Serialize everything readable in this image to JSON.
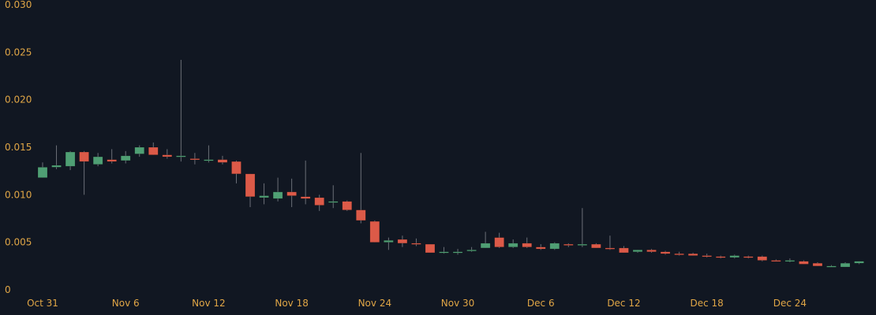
{
  "colors": {
    "background": "#111722",
    "up": "#4f9f74",
    "down": "#dc5a48",
    "wick": "#6b6f78",
    "tick_label": "#e0a646"
  },
  "chart_data": {
    "type": "candlestick",
    "title": "",
    "xlabel": "",
    "ylabel": "",
    "ylim": [
      0,
      0.03
    ],
    "y_ticks": [
      0,
      0.005,
      0.01,
      0.015,
      0.02,
      0.025,
      0.03
    ],
    "y_tick_labels": [
      "0",
      "0.005",
      "0.010",
      "0.015",
      "0.020",
      "0.025",
      "0.030"
    ],
    "x_tick_labels": [
      "Oct 31",
      "Nov 6",
      "Nov 12",
      "Nov 18",
      "Nov 24",
      "Nov 30",
      "Dec 6",
      "Dec 12",
      "Dec 18",
      "Dec 24"
    ],
    "x_tick_index": [
      0,
      6,
      12,
      18,
      24,
      30,
      36,
      42,
      48,
      54
    ],
    "grid": false,
    "candles": [
      {
        "date": "Oct 31",
        "open": 0.0118,
        "high": 0.0134,
        "low": 0.0118,
        "close": 0.0129
      },
      {
        "date": "Nov 1",
        "open": 0.0129,
        "high": 0.0152,
        "low": 0.0127,
        "close": 0.0131
      },
      {
        "date": "Nov 2",
        "open": 0.013,
        "high": 0.0146,
        "low": 0.0126,
        "close": 0.0145
      },
      {
        "date": "Nov 3",
        "open": 0.0145,
        "high": 0.0146,
        "low": 0.01,
        "close": 0.0135
      },
      {
        "date": "Nov 4",
        "open": 0.0132,
        "high": 0.0144,
        "low": 0.013,
        "close": 0.014
      },
      {
        "date": "Nov 5",
        "open": 0.0137,
        "high": 0.0148,
        "low": 0.0133,
        "close": 0.0135
      },
      {
        "date": "Nov 6",
        "open": 0.0136,
        "high": 0.0146,
        "low": 0.0133,
        "close": 0.0141
      },
      {
        "date": "Nov 7",
        "open": 0.0143,
        "high": 0.0152,
        "low": 0.014,
        "close": 0.015
      },
      {
        "date": "Nov 8",
        "open": 0.015,
        "high": 0.0155,
        "low": 0.0142,
        "close": 0.0142
      },
      {
        "date": "Nov 9",
        "open": 0.0142,
        "high": 0.0148,
        "low": 0.0138,
        "close": 0.014
      },
      {
        "date": "Nov 10",
        "open": 0.014,
        "high": 0.0242,
        "low": 0.0135,
        "close": 0.0141
      },
      {
        "date": "Nov 11",
        "open": 0.0138,
        "high": 0.0144,
        "low": 0.0132,
        "close": 0.0137
      },
      {
        "date": "Nov 12",
        "open": 0.0137,
        "high": 0.0152,
        "low": 0.0134,
        "close": 0.0137
      },
      {
        "date": "Nov 13",
        "open": 0.0137,
        "high": 0.0141,
        "low": 0.0132,
        "close": 0.0134
      },
      {
        "date": "Nov 14",
        "open": 0.0135,
        "high": 0.0136,
        "low": 0.0112,
        "close": 0.0122
      },
      {
        "date": "Nov 15",
        "open": 0.0122,
        "high": 0.0122,
        "low": 0.0087,
        "close": 0.0098
      },
      {
        "date": "Nov 16",
        "open": 0.0097,
        "high": 0.0112,
        "low": 0.009,
        "close": 0.0099
      },
      {
        "date": "Nov 17",
        "open": 0.0096,
        "high": 0.0118,
        "low": 0.0093,
        "close": 0.0103
      },
      {
        "date": "Nov 18",
        "open": 0.0103,
        "high": 0.0117,
        "low": 0.0087,
        "close": 0.0099
      },
      {
        "date": "Nov 19",
        "open": 0.0098,
        "high": 0.0136,
        "low": 0.009,
        "close": 0.0096
      },
      {
        "date": "Nov 20",
        "open": 0.0097,
        "high": 0.01,
        "low": 0.0083,
        "close": 0.0089
      },
      {
        "date": "Nov 21",
        "open": 0.0093,
        "high": 0.011,
        "low": 0.0086,
        "close": 0.0093
      },
      {
        "date": "Nov 22",
        "open": 0.0093,
        "high": 0.0094,
        "low": 0.0083,
        "close": 0.0084
      },
      {
        "date": "Nov 23",
        "open": 0.0084,
        "high": 0.0144,
        "low": 0.007,
        "close": 0.0073
      },
      {
        "date": "Nov 24",
        "open": 0.0072,
        "high": 0.0073,
        "low": 0.005,
        "close": 0.005
      },
      {
        "date": "Nov 25",
        "open": 0.005,
        "high": 0.0055,
        "low": 0.0042,
        "close": 0.0052
      },
      {
        "date": "Nov 26",
        "open": 0.0053,
        "high": 0.0057,
        "low": 0.0045,
        "close": 0.0049
      },
      {
        "date": "Nov 27",
        "open": 0.0049,
        "high": 0.0054,
        "low": 0.0046,
        "close": 0.0048
      },
      {
        "date": "Nov 28",
        "open": 0.0048,
        "high": 0.0048,
        "low": 0.0039,
        "close": 0.0039
      },
      {
        "date": "Nov 29",
        "open": 0.0039,
        "high": 0.0045,
        "low": 0.0038,
        "close": 0.004
      },
      {
        "date": "Nov 30",
        "open": 0.0039,
        "high": 0.0043,
        "low": 0.0037,
        "close": 0.004
      },
      {
        "date": "Dec 1",
        "open": 0.0041,
        "high": 0.0045,
        "low": 0.004,
        "close": 0.0042
      },
      {
        "date": "Dec 2",
        "open": 0.0044,
        "high": 0.0061,
        "low": 0.0044,
        "close": 0.0049
      },
      {
        "date": "Dec 3",
        "open": 0.0055,
        "high": 0.006,
        "low": 0.0044,
        "close": 0.0045
      },
      {
        "date": "Dec 4",
        "open": 0.0045,
        "high": 0.0053,
        "low": 0.0044,
        "close": 0.0049
      },
      {
        "date": "Dec 5",
        "open": 0.0049,
        "high": 0.0055,
        "low": 0.0044,
        "close": 0.0045
      },
      {
        "date": "Dec 6",
        "open": 0.0045,
        "high": 0.0048,
        "low": 0.0042,
        "close": 0.0043
      },
      {
        "date": "Dec 7",
        "open": 0.0043,
        "high": 0.005,
        "low": 0.0042,
        "close": 0.0049
      },
      {
        "date": "Dec 8",
        "open": 0.0048,
        "high": 0.0049,
        "low": 0.0045,
        "close": 0.0047
      },
      {
        "date": "Dec 9",
        "open": 0.0047,
        "high": 0.0086,
        "low": 0.0045,
        "close": 0.0048
      },
      {
        "date": "Dec 10",
        "open": 0.0048,
        "high": 0.0049,
        "low": 0.0044,
        "close": 0.0044
      },
      {
        "date": "Dec 11",
        "open": 0.0044,
        "high": 0.0057,
        "low": 0.0042,
        "close": 0.0043
      },
      {
        "date": "Dec 12",
        "open": 0.0044,
        "high": 0.0046,
        "low": 0.0039,
        "close": 0.0039
      },
      {
        "date": "Dec 13",
        "open": 0.004,
        "high": 0.0042,
        "low": 0.0039,
        "close": 0.0042
      },
      {
        "date": "Dec 14",
        "open": 0.0042,
        "high": 0.0043,
        "low": 0.0039,
        "close": 0.004
      },
      {
        "date": "Dec 15",
        "open": 0.004,
        "high": 0.0041,
        "low": 0.0037,
        "close": 0.0038
      },
      {
        "date": "Dec 16",
        "open": 0.0038,
        "high": 0.004,
        "low": 0.0036,
        "close": 0.0037
      },
      {
        "date": "Dec 17",
        "open": 0.0038,
        "high": 0.0039,
        "low": 0.0036,
        "close": 0.0036
      },
      {
        "date": "Dec 18",
        "open": 0.0036,
        "high": 0.0038,
        "low": 0.0034,
        "close": 0.0035
      },
      {
        "date": "Dec 19",
        "open": 0.0035,
        "high": 0.0036,
        "low": 0.0033,
        "close": 0.0034
      },
      {
        "date": "Dec 20",
        "open": 0.0034,
        "high": 0.0037,
        "low": 0.0033,
        "close": 0.0036
      },
      {
        "date": "Dec 21",
        "open": 0.0035,
        "high": 0.0036,
        "low": 0.0033,
        "close": 0.0034
      },
      {
        "date": "Dec 22",
        "open": 0.0035,
        "high": 0.0036,
        "low": 0.003,
        "close": 0.0031
      },
      {
        "date": "Dec 23",
        "open": 0.0031,
        "high": 0.0032,
        "low": 0.003,
        "close": 0.003
      },
      {
        "date": "Dec 24",
        "open": 0.003,
        "high": 0.0033,
        "low": 0.0029,
        "close": 0.0031
      },
      {
        "date": "Dec 25",
        "open": 0.003,
        "high": 0.0031,
        "low": 0.0027,
        "close": 0.0027
      },
      {
        "date": "Dec 26",
        "open": 0.0028,
        "high": 0.0029,
        "low": 0.0025,
        "close": 0.0025
      },
      {
        "date": "Dec 27",
        "open": 0.0025,
        "high": 0.0026,
        "low": 0.0024,
        "close": 0.0025
      },
      {
        "date": "Dec 28",
        "open": 0.0024,
        "high": 0.0029,
        "low": 0.0024,
        "close": 0.0028
      },
      {
        "date": "Dec 29",
        "open": 0.0028,
        "high": 0.003,
        "low": 0.0027,
        "close": 0.003
      }
    ]
  }
}
